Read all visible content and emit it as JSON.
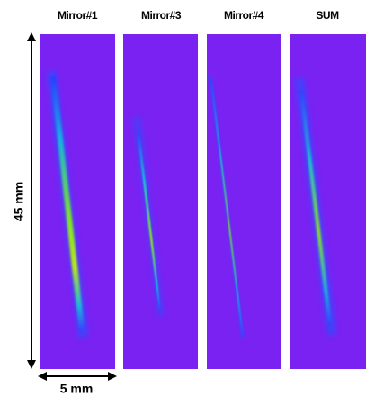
{
  "panels": [
    {
      "title": "Mirror#1"
    },
    {
      "title": "Mirror#3"
    },
    {
      "title": "Mirror#4"
    },
    {
      "title": "SUM"
    }
  ],
  "height_label": "45 mm",
  "width_label": "5 mm"
}
